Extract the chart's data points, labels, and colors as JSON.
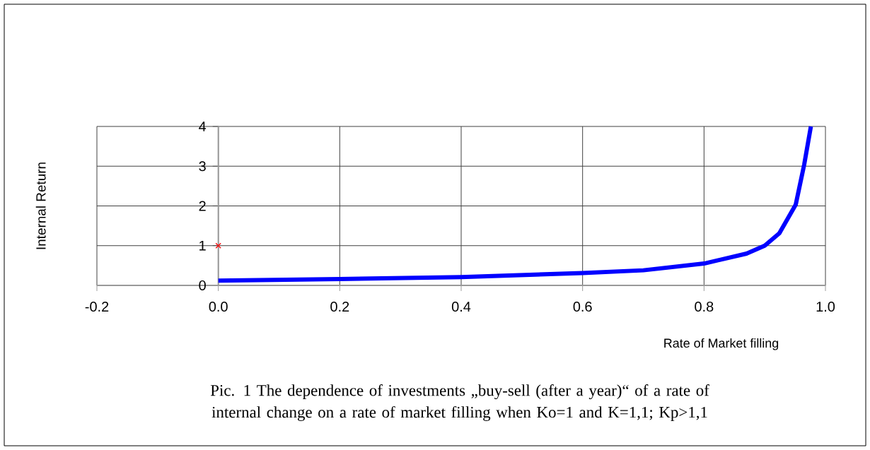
{
  "chart_data": {
    "type": "line",
    "xlabel": "Rate of Market filling",
    "ylabel": "Internal Return",
    "annotations": [
      "Pic. 1 The dependence of investments „buy-sell (after a year)“ of a rate of internal change on a rate of market filling when Ko=1 and K=1,1; Kp>1,1"
    ],
    "xlim": [
      -0.2,
      1.0
    ],
    "ylim": [
      0,
      4
    ],
    "xticks": [
      -0.2,
      {
        "value": 0,
        "label": "0.0"
      },
      0.2,
      0.4,
      0.6,
      0.8,
      {
        "value": 1.0,
        "label": "1.0"
      }
    ],
    "yticks": [
      0,
      1,
      2,
      3,
      4
    ],
    "grid": true,
    "series": [
      {
        "type": "line",
        "color": "#0000ff",
        "x": [
          0,
          0.2,
          0.4,
          0.6,
          0.7,
          0.8,
          0.87,
          0.9,
          0.924,
          0.951,
          0.965,
          0.976
        ],
        "values": [
          0.12,
          0.16,
          0.21,
          0.31,
          0.38,
          0.55,
          0.8,
          1.0,
          1.31,
          2.03,
          3.04,
          4.0
        ]
      },
      {
        "type": "scatter",
        "color": "#ff0000",
        "marker": "cross",
        "x": [
          0
        ],
        "values": [
          1
        ]
      }
    ]
  }
}
